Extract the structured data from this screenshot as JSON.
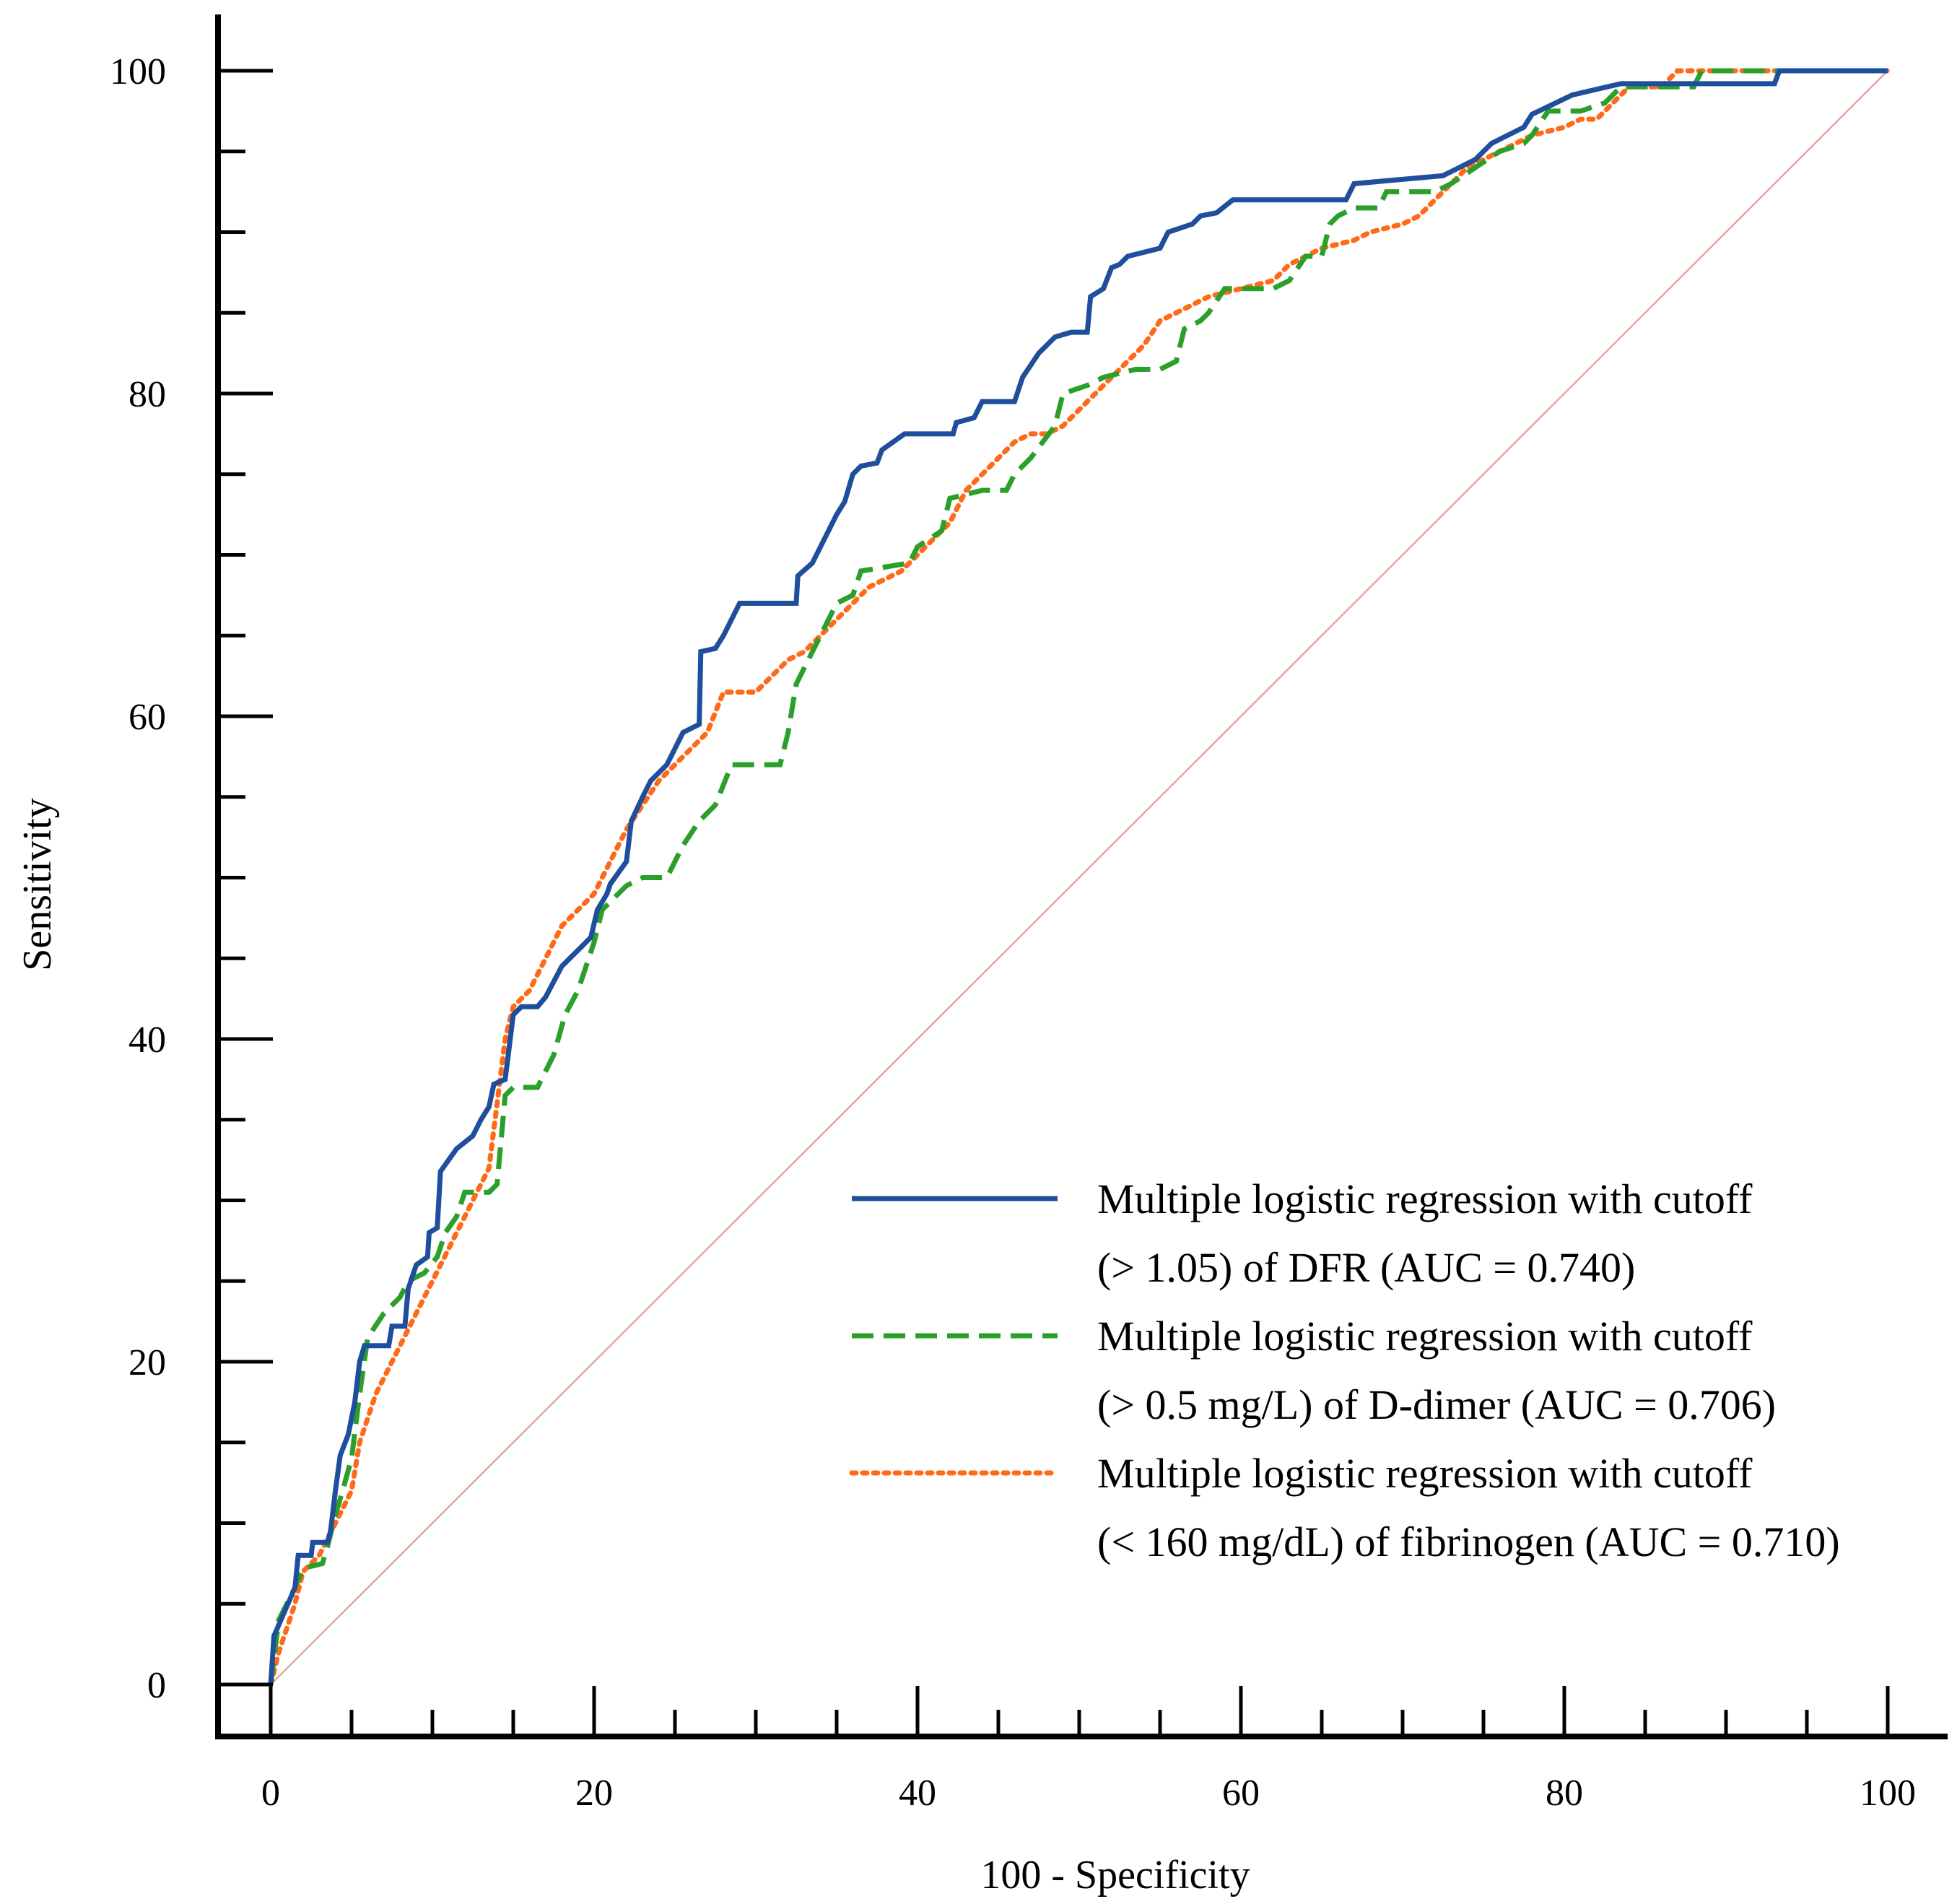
{
  "chart_data": {
    "type": "line",
    "title": "",
    "xlabel": "100 - Specificity",
    "ylabel": "Sensitivity",
    "xlim": [
      0,
      100
    ],
    "ylim": [
      0,
      100
    ],
    "xticks": [
      0,
      20,
      40,
      60,
      80,
      100
    ],
    "yticks": [
      0,
      20,
      40,
      60,
      80,
      100
    ],
    "x_minor_step": 5,
    "y_minor_step": 5,
    "grid": false,
    "legend_position": "bottom-right",
    "reference_line": {
      "name": "Reference line",
      "from": [
        0,
        0
      ],
      "to": [
        100,
        100
      ],
      "color": "#e0a8a0"
    },
    "series": [
      {
        "name": "DFR",
        "legend_lines": [
          "Multiple logistic regression with cutoff",
          "(> 1.05) of DFR (AUC = 0.740)"
        ],
        "color": "#1f4e9c",
        "style": "solid",
        "points": [
          [
            0,
            0
          ],
          [
            0.2,
            3
          ],
          [
            1.5,
            6
          ],
          [
            1.7,
            8
          ],
          [
            2.5,
            8
          ],
          [
            2.6,
            8.8
          ],
          [
            3.5,
            8.8
          ],
          [
            3.7,
            9.5
          ],
          [
            4,
            12
          ],
          [
            4.3,
            14.2
          ],
          [
            4.8,
            15.5
          ],
          [
            5.2,
            17.5
          ],
          [
            5.5,
            20
          ],
          [
            5.8,
            21
          ],
          [
            7.3,
            21
          ],
          [
            7.5,
            22.2
          ],
          [
            8.3,
            22.2
          ],
          [
            8.5,
            24.5
          ],
          [
            9,
            26
          ],
          [
            9.7,
            26.5
          ],
          [
            9.8,
            28
          ],
          [
            10.3,
            28.3
          ],
          [
            10.5,
            31.8
          ],
          [
            11,
            32.5
          ],
          [
            11.5,
            33.2
          ],
          [
            12.5,
            34
          ],
          [
            13,
            35
          ],
          [
            13.5,
            35.8
          ],
          [
            13.8,
            37.2
          ],
          [
            14.5,
            37.5
          ],
          [
            15,
            41.5
          ],
          [
            15.5,
            42
          ],
          [
            16.5,
            42
          ],
          [
            17,
            42.6
          ],
          [
            18,
            44.5
          ],
          [
            19,
            45.5
          ],
          [
            19.8,
            46.3
          ],
          [
            20.2,
            48
          ],
          [
            20.8,
            49
          ],
          [
            21,
            49.6
          ],
          [
            22,
            51
          ],
          [
            22.3,
            53.5
          ],
          [
            23,
            55
          ],
          [
            23.5,
            56
          ],
          [
            24.5,
            57
          ],
          [
            25,
            58
          ],
          [
            25.5,
            59
          ],
          [
            26.5,
            59.5
          ],
          [
            26.6,
            64
          ],
          [
            27.5,
            64.2
          ],
          [
            28,
            65
          ],
          [
            29,
            67
          ],
          [
            32.5,
            67
          ],
          [
            32.6,
            68.7
          ],
          [
            33.5,
            69.5
          ],
          [
            34.5,
            71.5
          ],
          [
            35,
            72.5
          ],
          [
            35.5,
            73.3
          ],
          [
            36,
            75
          ],
          [
            36.5,
            75.5
          ],
          [
            37.5,
            75.7
          ],
          [
            37.8,
            76.5
          ],
          [
            38.5,
            77
          ],
          [
            39.2,
            77.5
          ],
          [
            42.2,
            77.5
          ],
          [
            42.4,
            78.2
          ],
          [
            43.5,
            78.5
          ],
          [
            44,
            79.5
          ],
          [
            46,
            79.5
          ],
          [
            46.5,
            81
          ],
          [
            47.5,
            82.5
          ],
          [
            48.5,
            83.5
          ],
          [
            49.5,
            83.8
          ],
          [
            50.5,
            83.8
          ],
          [
            50.7,
            86
          ],
          [
            51.5,
            86.5
          ],
          [
            52,
            87.8
          ],
          [
            52.5,
            88
          ],
          [
            53,
            88.5
          ],
          [
            55,
            89
          ],
          [
            55.5,
            90
          ],
          [
            57,
            90.5
          ],
          [
            57.5,
            91
          ],
          [
            58.5,
            91.2
          ],
          [
            59.5,
            92
          ],
          [
            66.5,
            92
          ],
          [
            67,
            93
          ],
          [
            72.5,
            93.5
          ],
          [
            73.5,
            94
          ],
          [
            74.5,
            94.5
          ],
          [
            75.5,
            95.5
          ],
          [
            76.5,
            96
          ],
          [
            77.5,
            96.5
          ],
          [
            78,
            97.3
          ],
          [
            80.5,
            98.5
          ],
          [
            83.5,
            99.2
          ],
          [
            93,
            99.2
          ],
          [
            93.3,
            100
          ],
          [
            100,
            100
          ]
        ]
      },
      {
        "name": "D-dimer",
        "legend_lines": [
          "Multiple logistic regression with cutoff",
          "(> 0.5 mg/L) of D-dimer (AUC = 0.706)"
        ],
        "color": "#2aa02a",
        "style": "dashed",
        "points": [
          [
            0,
            0
          ],
          [
            0.5,
            4
          ],
          [
            1.5,
            6
          ],
          [
            2,
            7.2
          ],
          [
            3.2,
            7.5
          ],
          [
            3.5,
            8.5
          ],
          [
            4,
            10.5
          ],
          [
            4.5,
            12.2
          ],
          [
            5,
            14
          ],
          [
            5.5,
            18
          ],
          [
            6,
            21.5
          ],
          [
            7,
            23
          ],
          [
            8,
            24
          ],
          [
            8.5,
            25
          ],
          [
            9.5,
            25.5
          ],
          [
            10.3,
            26.5
          ],
          [
            10.8,
            28
          ],
          [
            11.5,
            29
          ],
          [
            12,
            30.5
          ],
          [
            13.5,
            30.5
          ],
          [
            14,
            31
          ],
          [
            14.5,
            36.5
          ],
          [
            15,
            37
          ],
          [
            16.5,
            37
          ],
          [
            17.5,
            39
          ],
          [
            18.2,
            41.5
          ],
          [
            19,
            43
          ],
          [
            20,
            46
          ],
          [
            20.5,
            48
          ],
          [
            21,
            48.5
          ],
          [
            22,
            49.5
          ],
          [
            23,
            50
          ],
          [
            24.5,
            50
          ],
          [
            25.5,
            52
          ],
          [
            26.5,
            53.5
          ],
          [
            27.5,
            54.5
          ],
          [
            28.5,
            57
          ],
          [
            31.5,
            57
          ],
          [
            32,
            59
          ],
          [
            32.5,
            62
          ],
          [
            33.5,
            64
          ],
          [
            35,
            67
          ],
          [
            36,
            67.5
          ],
          [
            36.5,
            69
          ],
          [
            39.5,
            69.5
          ],
          [
            40,
            70.5
          ],
          [
            41.5,
            71.5
          ],
          [
            42,
            73.5
          ],
          [
            44,
            74
          ],
          [
            45.5,
            74
          ],
          [
            46,
            75
          ],
          [
            47,
            76
          ],
          [
            48.5,
            78
          ],
          [
            49,
            80
          ],
          [
            50.5,
            80.5
          ],
          [
            51.5,
            81
          ],
          [
            53.5,
            81.5
          ],
          [
            55,
            81.5
          ],
          [
            56,
            82
          ],
          [
            56.5,
            84
          ],
          [
            57.5,
            84.5
          ],
          [
            58,
            85
          ],
          [
            59,
            86.5
          ],
          [
            62,
            86.5
          ],
          [
            63,
            87
          ],
          [
            64,
            88.5
          ],
          [
            65,
            88.5
          ],
          [
            65.5,
            90.5
          ],
          [
            66,
            91
          ],
          [
            67,
            91.5
          ],
          [
            68.5,
            91.5
          ],
          [
            69,
            92.5
          ],
          [
            72,
            92.5
          ],
          [
            73,
            93
          ],
          [
            74.5,
            94
          ],
          [
            76,
            95
          ],
          [
            77.5,
            95.5
          ],
          [
            78,
            96
          ],
          [
            79,
            97.5
          ],
          [
            81,
            97.5
          ],
          [
            82.5,
            98
          ],
          [
            83.5,
            99
          ],
          [
            88,
            99
          ],
          [
            88.5,
            100
          ],
          [
            100,
            100
          ]
        ]
      },
      {
        "name": "fibrinogen",
        "legend_lines": [
          "Multiple logistic regression with cutoff",
          "(< 160 mg/dL) of fibrinogen (AUC = 0.710)"
        ],
        "color": "#ff6a1a",
        "style": "dotted",
        "points": [
          [
            0,
            0
          ],
          [
            0.5,
            2
          ],
          [
            1.5,
            5
          ],
          [
            2,
            7
          ],
          [
            3,
            8
          ],
          [
            4,
            10
          ],
          [
            5,
            12
          ],
          [
            5.5,
            15
          ],
          [
            6.5,
            18
          ],
          [
            7.5,
            20
          ],
          [
            8.5,
            22
          ],
          [
            9.5,
            24
          ],
          [
            10.5,
            26
          ],
          [
            11.5,
            28
          ],
          [
            12.5,
            30
          ],
          [
            13.5,
            32
          ],
          [
            14,
            36
          ],
          [
            14.5,
            40
          ],
          [
            15,
            42
          ],
          [
            16,
            43
          ],
          [
            17,
            45
          ],
          [
            18,
            47
          ],
          [
            19,
            48
          ],
          [
            20,
            49
          ],
          [
            21,
            51
          ],
          [
            22,
            53
          ],
          [
            23,
            54.5
          ],
          [
            24,
            56
          ],
          [
            25,
            57
          ],
          [
            26,
            58
          ],
          [
            27,
            59
          ],
          [
            28,
            61.5
          ],
          [
            30,
            61.5
          ],
          [
            31,
            62.5
          ],
          [
            32,
            63.5
          ],
          [
            33,
            64
          ],
          [
            34,
            65
          ],
          [
            35,
            66
          ],
          [
            36,
            67
          ],
          [
            37,
            68
          ],
          [
            38,
            68.5
          ],
          [
            39,
            69
          ],
          [
            40,
            70
          ],
          [
            41,
            71
          ],
          [
            42,
            72
          ],
          [
            43,
            74
          ],
          [
            44,
            75
          ],
          [
            45,
            76
          ],
          [
            46,
            77
          ],
          [
            47,
            77.5
          ],
          [
            48,
            77.5
          ],
          [
            49,
            78
          ],
          [
            50,
            79
          ],
          [
            51,
            80
          ],
          [
            52,
            81
          ],
          [
            53,
            82
          ],
          [
            54,
            83
          ],
          [
            55,
            84.5
          ],
          [
            56,
            85
          ],
          [
            57,
            85.5
          ],
          [
            58,
            86
          ],
          [
            60,
            86.5
          ],
          [
            62,
            87
          ],
          [
            63,
            88
          ],
          [
            65,
            89
          ],
          [
            67,
            89.5
          ],
          [
            68,
            90
          ],
          [
            70,
            90.5
          ],
          [
            71,
            91
          ],
          [
            72,
            92
          ],
          [
            73,
            93
          ],
          [
            74,
            94
          ],
          [
            75,
            94.5
          ],
          [
            76,
            95
          ],
          [
            77,
            95.5
          ],
          [
            78,
            96
          ],
          [
            80,
            96.5
          ],
          [
            81,
            97
          ],
          [
            82,
            97
          ],
          [
            83,
            98
          ],
          [
            84,
            99
          ],
          [
            86,
            99
          ],
          [
            87,
            100
          ],
          [
            100,
            100
          ]
        ]
      }
    ]
  }
}
